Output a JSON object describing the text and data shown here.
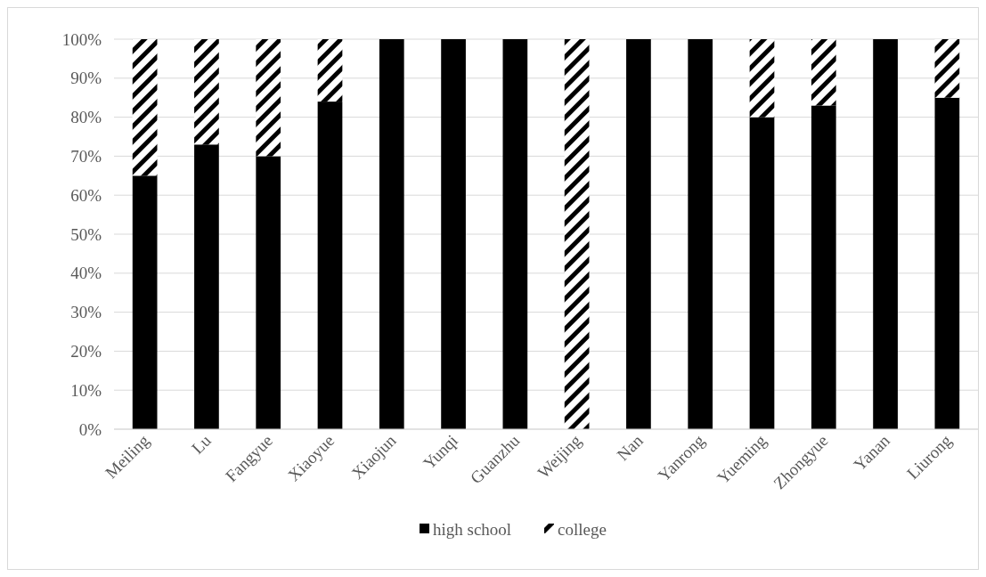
{
  "chart_data": {
    "type": "bar",
    "stacked": true,
    "categories": [
      "Meiling",
      "Lu",
      "Fangyue",
      "Xiaoyue",
      "Xiaojun",
      "Yunqi",
      "Guanzhu",
      "Weijing",
      "Nan",
      "Yanrong",
      "Yueming",
      "Zhongyue",
      "Yanan",
      "Liurong"
    ],
    "series": [
      {
        "name": "high school",
        "color": "#000000",
        "values": [
          65,
          73,
          70,
          84,
          100,
          100,
          100,
          0,
          100,
          100,
          80,
          83,
          100,
          85
        ]
      },
      {
        "name": "college",
        "color": "#000000",
        "values": [
          35,
          27,
          30,
          16,
          0,
          0,
          0,
          100,
          0,
          0,
          20,
          17,
          0,
          15
        ]
      }
    ],
    "ylim": [
      0,
      100
    ],
    "yticks": [
      {
        "value": 0,
        "label": "0%"
      },
      {
        "value": 10,
        "label": "10%"
      },
      {
        "value": 20,
        "label": "20%"
      },
      {
        "value": 30,
        "label": "30%"
      },
      {
        "value": 40,
        "label": "40%"
      },
      {
        "value": 50,
        "label": "50%"
      },
      {
        "value": 60,
        "label": "60%"
      },
      {
        "value": 70,
        "label": "70%"
      },
      {
        "value": 80,
        "label": "80%"
      },
      {
        "value": 90,
        "label": "90%"
      },
      {
        "value": 100,
        "label": "100%"
      }
    ],
    "grid": "y",
    "legend": "bottom"
  }
}
